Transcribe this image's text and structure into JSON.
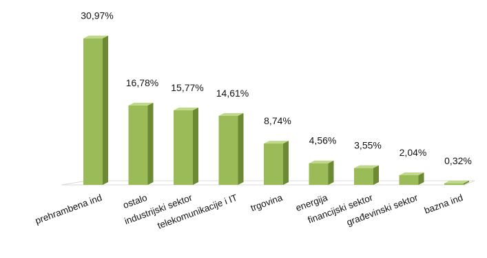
{
  "chart_data": {
    "type": "bar",
    "title": "",
    "xlabel": "",
    "ylabel": "",
    "ylim": [
      0,
      35
    ],
    "grid": false,
    "legend": "none",
    "categories": [
      "prehrambena ind",
      "ostalo",
      "industrijski sektor",
      "telekomunikacije i IT",
      "trgovina",
      "energija",
      "financijski sektor",
      "građevinski sektor",
      "bazna ind"
    ],
    "values": [
      30.97,
      16.78,
      15.77,
      14.61,
      8.74,
      4.56,
      3.55,
      2.04,
      0.32
    ],
    "value_labels": [
      "30,97%",
      "16,78%",
      "15,77%",
      "14,61%",
      "8,74%",
      "4,56%",
      "3,55%",
      "2,04%",
      "0,32%"
    ],
    "colors": {
      "bar_front": "#9bbb59",
      "bar_side": "#6b8a33",
      "bar_top": "#c0d88a",
      "floor": "#d9d9d9"
    }
  }
}
